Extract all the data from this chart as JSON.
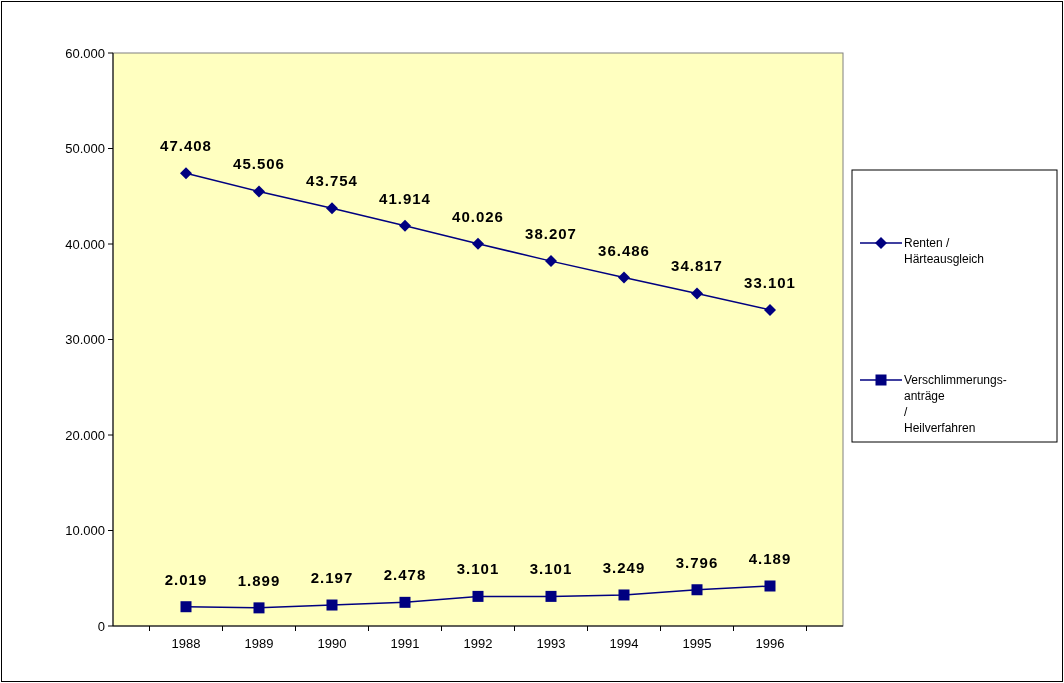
{
  "chart_data": {
    "type": "line",
    "categories": [
      "1988",
      "1989",
      "1990",
      "1991",
      "1992",
      "1993",
      "1994",
      "1995",
      "1996"
    ],
    "series": [
      {
        "name": "Renten / Härteausgleich",
        "color": "#000080",
        "marker": "diamond",
        "values": [
          47408,
          45506,
          43754,
          41914,
          40026,
          38207,
          36486,
          34817,
          33101
        ],
        "value_labels": [
          "47.408",
          "45.506",
          "43.754",
          "41.914",
          "40.026",
          "38.207",
          "36.486",
          "34.817",
          "33.101"
        ]
      },
      {
        "name": "Verschlimmerungs-anträge / Heilverfahren",
        "color": "#000080",
        "marker": "square",
        "values": [
          2019,
          1899,
          2197,
          2478,
          3101,
          3101,
          3249,
          3796,
          4189
        ],
        "value_labels": [
          "2.019",
          "1.899",
          "2.197",
          "2.478",
          "3.101",
          "3.101",
          "3.249",
          "3.796",
          "4.189"
        ]
      }
    ],
    "ylim": [
      0,
      60000
    ],
    "yticks": [
      {
        "value": 0,
        "label": "0"
      },
      {
        "value": 10000,
        "label": "10.000"
      },
      {
        "value": 20000,
        "label": "20.000"
      },
      {
        "value": 30000,
        "label": "30.000"
      },
      {
        "value": 40000,
        "label": "40.000"
      },
      {
        "value": 50000,
        "label": "50.000"
      },
      {
        "value": 60000,
        "label": "60.000"
      }
    ],
    "grid": false,
    "legend": "right",
    "line_style": "solid"
  }
}
